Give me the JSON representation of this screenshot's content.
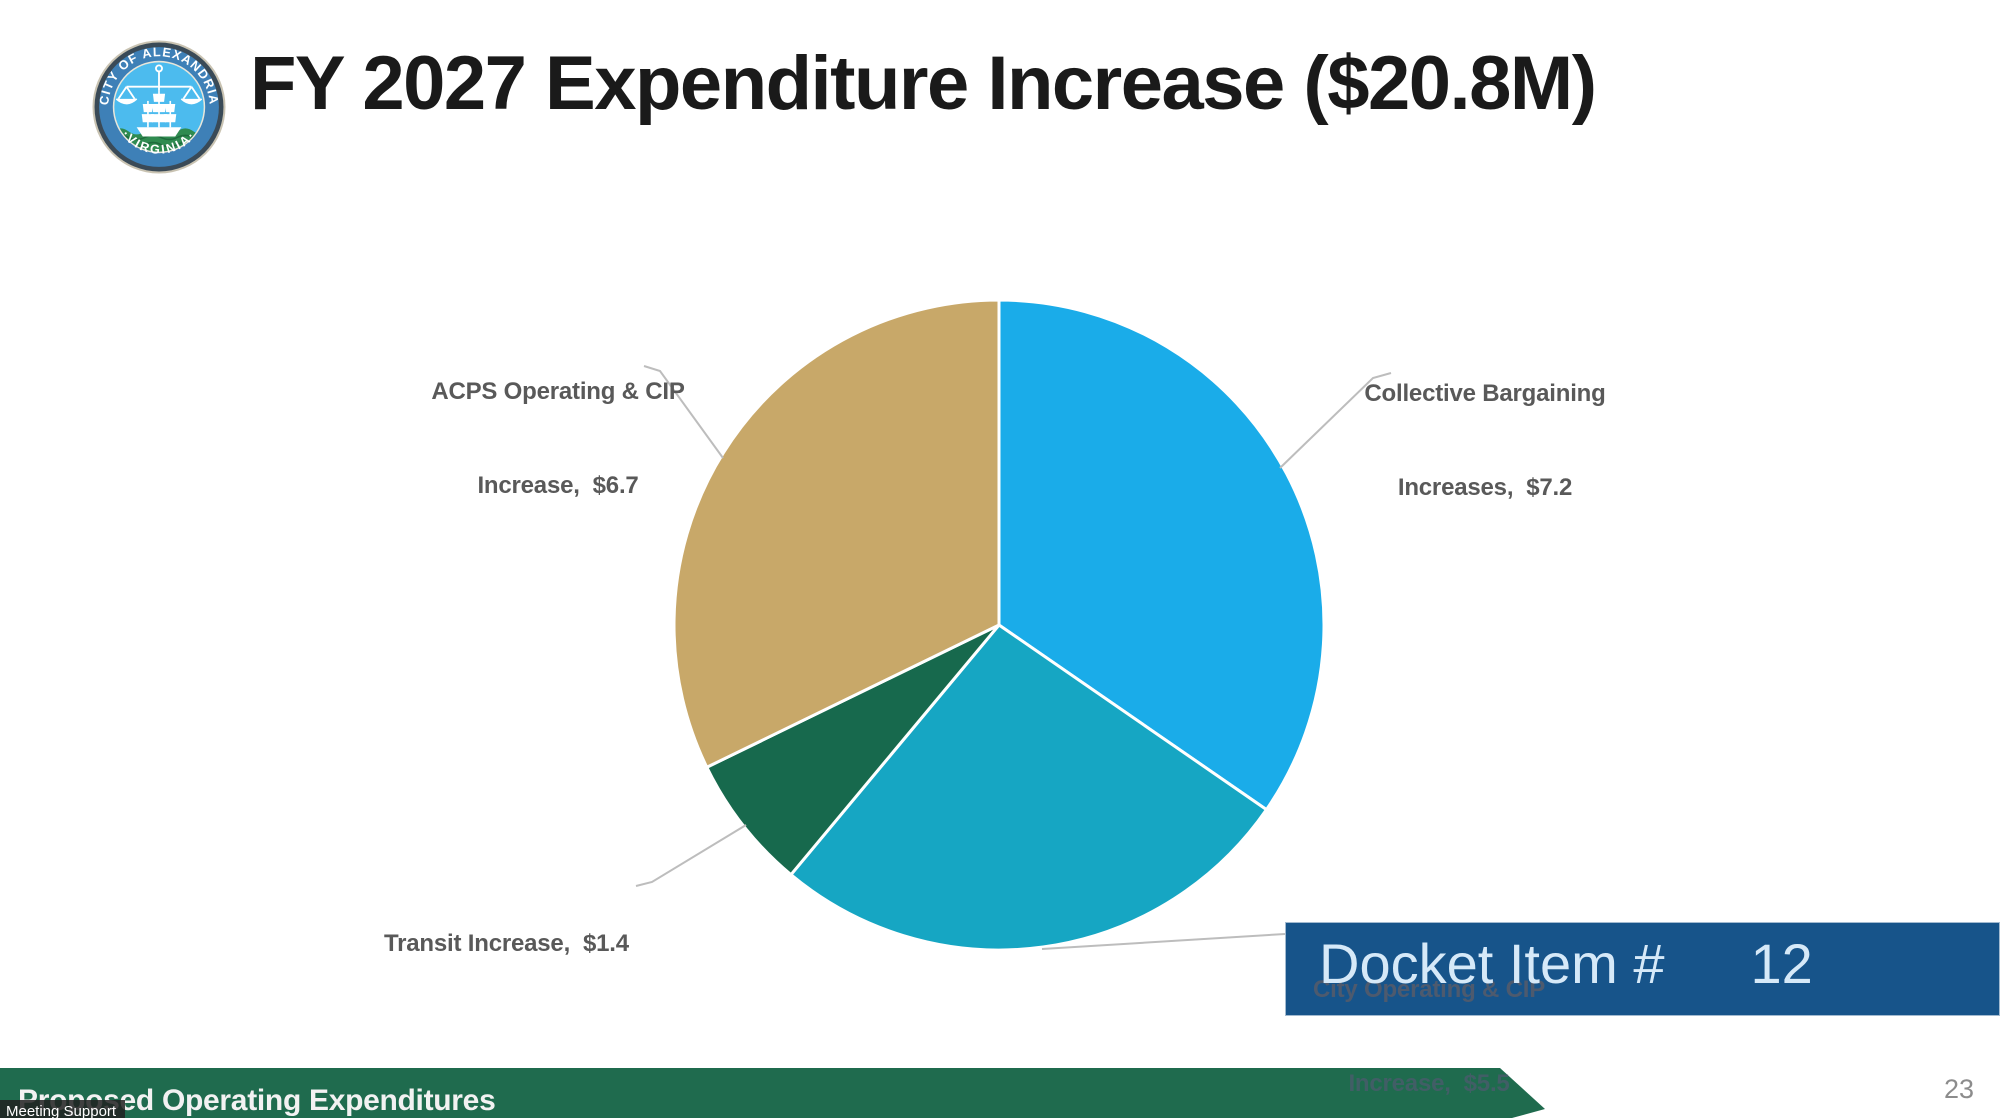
{
  "header": {
    "title": "FY 2027 Expenditure Increase ($20.8M)",
    "seal": {
      "top_text": "CITY OF ALEXANDRIA",
      "bottom_text": "·VIRGINIA·"
    }
  },
  "chart_data": {
    "type": "pie",
    "title": "FY 2027 Expenditure Increase ($20.8M)",
    "total": 20.8,
    "units": "$M",
    "direction": "clockwise",
    "start_angle_deg": 0,
    "legend_position": "callout-labels",
    "slices": [
      {
        "id": "collective-bargaining",
        "label": "Collective Bargaining Increases",
        "value": 7.2,
        "color": "#1AACE9"
      },
      {
        "id": "city-operating-cip",
        "label": "City Operating & CIP Increase",
        "value": 5.5,
        "color": "#16A6C3"
      },
      {
        "id": "transit-increase",
        "label": "Transit Increase",
        "value": 1.4,
        "color": "#17694D"
      },
      {
        "id": "acps-operating-cip",
        "label": "ACPS Operating & CIP Increase",
        "value": 6.7,
        "color": "#C8A869"
      }
    ]
  },
  "callouts": {
    "acps": {
      "line1": "ACPS Operating & CIP",
      "line2": "Increase,  $6.7"
    },
    "collective": {
      "line1": "Collective Bargaining",
      "line2": "Increases,  $7.2"
    },
    "transit": {
      "line1": "Transit Increase,  $1.4"
    },
    "city": {
      "line1": "City Operating & CIP",
      "line2": "Increase,  $5.5"
    }
  },
  "docket_banner": {
    "label": "Docket Item #",
    "number": "12"
  },
  "footer": {
    "banner_label": "Proposed Operating Expenditures",
    "page_number": "23"
  },
  "overlay": {
    "caption": "Meeting Support"
  },
  "colors": {
    "slice_blue": "#1AACE9",
    "slice_teal": "#16A6C3",
    "slice_green": "#17694D",
    "slice_tan": "#C8A869",
    "docket_banner_bg": "#17548A",
    "docket_banner_text": "#D6E9F8",
    "footer_banner_bg": "#1F6B4E",
    "callout_text": "#595959",
    "leader_line": "#BDBDBD",
    "title_text": "#1A1A1A",
    "page_number": "#8C8C8C"
  }
}
